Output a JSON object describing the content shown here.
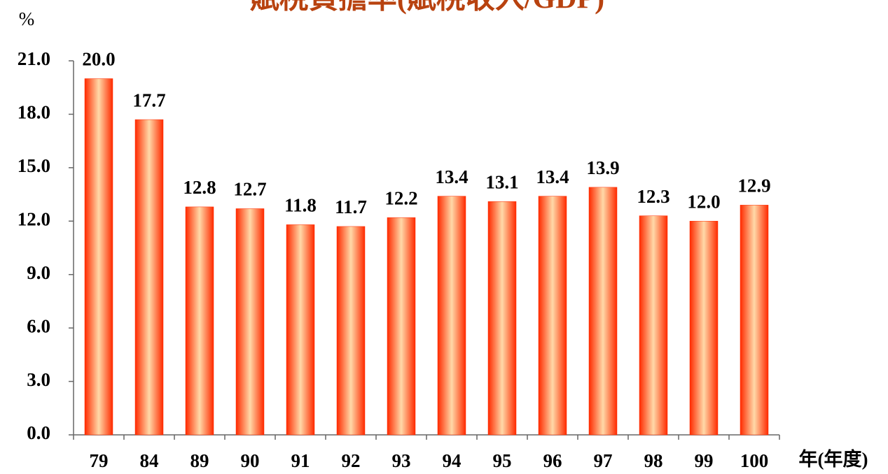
{
  "chart_data": {
    "type": "bar",
    "title": "賦稅負擔率(賦稅收入/GDP)",
    "y_axis_label": "%",
    "x_axis_label": "年(年度)",
    "categories": [
      "79",
      "84",
      "89",
      "90",
      "91",
      "92",
      "93",
      "94",
      "95",
      "96",
      "97",
      "98",
      "99",
      "100"
    ],
    "values": [
      20.0,
      17.7,
      12.8,
      12.7,
      11.8,
      11.7,
      12.2,
      13.4,
      13.1,
      13.4,
      13.9,
      12.3,
      12.0,
      12.9
    ],
    "value_labels": [
      "20.0",
      "17.7",
      "12.8",
      "12.7",
      "11.8",
      "11.7",
      "12.2",
      "13.4",
      "13.1",
      "13.4",
      "13.9",
      "12.3",
      "12.0",
      "12.9"
    ],
    "color": "#ff2a00",
    "ylim": [
      0,
      21
    ],
    "yticks": [
      {
        "value": 0,
        "label": "0.0"
      },
      {
        "value": 3,
        "label": "3.0"
      },
      {
        "value": 6,
        "label": "6.0"
      },
      {
        "value": 9,
        "label": "9.0"
      },
      {
        "value": 12,
        "label": "12.0"
      },
      {
        "value": 15,
        "label": "15.0"
      },
      {
        "value": 18,
        "label": "18.0"
      },
      {
        "value": 21,
        "label": "21.0"
      }
    ],
    "grid": false
  }
}
